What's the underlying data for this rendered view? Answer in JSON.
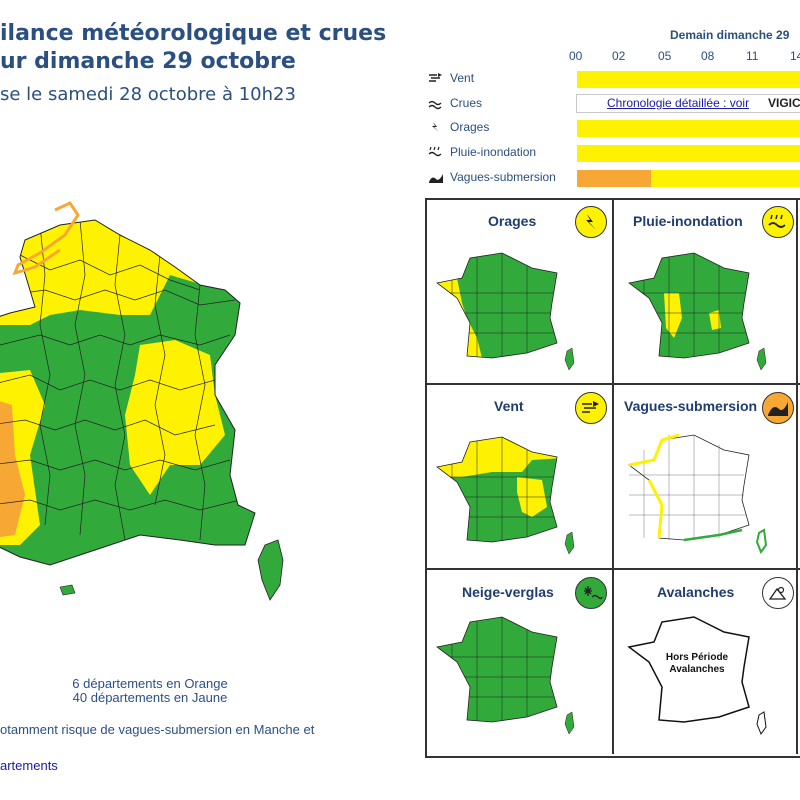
{
  "header": {
    "title_line1": "ilance météorologique et crues",
    "title_line2": "ur dimanche 29 octobre",
    "subtitle": "se le samedi 28 octobre à 10h23"
  },
  "summary": {
    "orange_count": "6 départements en Orange",
    "yellow_count": "40 départements en Jaune",
    "note": "otamment risque de vagues-submersion en Manche et",
    "link": "artements"
  },
  "timeline": {
    "heading": "Demain dimanche 29",
    "hours": [
      "00",
      "02",
      "05",
      "08",
      "11",
      "14"
    ],
    "rows": [
      {
        "label": "Vent",
        "icon": "wind-icon",
        "level": "yellow"
      },
      {
        "label": "Crues",
        "icon": "flood-icon",
        "link": "Chronologie détaillée : voir",
        "brand": "VIGICR"
      },
      {
        "label": "Orages",
        "icon": "lightning-icon",
        "level": "yellow"
      },
      {
        "label": "Pluie-inondation",
        "icon": "rain-flood-icon",
        "level": "yellow"
      },
      {
        "label": "Vagues-submersion",
        "icon": "waves-icon",
        "level": "orange-then-yellow",
        "orange_fraction": 0.32
      }
    ]
  },
  "panels": [
    {
      "title": "Orages",
      "icon": "lightning-icon",
      "icon_color": "#fff200"
    },
    {
      "title": "Pluie-inondation",
      "icon": "rain-flood-icon",
      "icon_color": "#fff200"
    },
    {
      "title": "Vent",
      "icon": "wind-icon",
      "icon_color": "#fff200"
    },
    {
      "title": "Vagues-submersion",
      "icon": "waves-icon",
      "icon_color": "#f7a834"
    },
    {
      "title": "Neige-verglas",
      "icon": "snow-icon",
      "icon_color": "#31a93b"
    },
    {
      "title": "Avalanches",
      "icon": "avalanche-icon",
      "icon_color": "#ffffff",
      "note_line1": "Hors Période",
      "note_line2": "Avalanches"
    }
  ],
  "colors": {
    "green": "#31a93b",
    "yellow": "#fff200",
    "orange": "#f7a834",
    "text": "#2a4f80"
  }
}
